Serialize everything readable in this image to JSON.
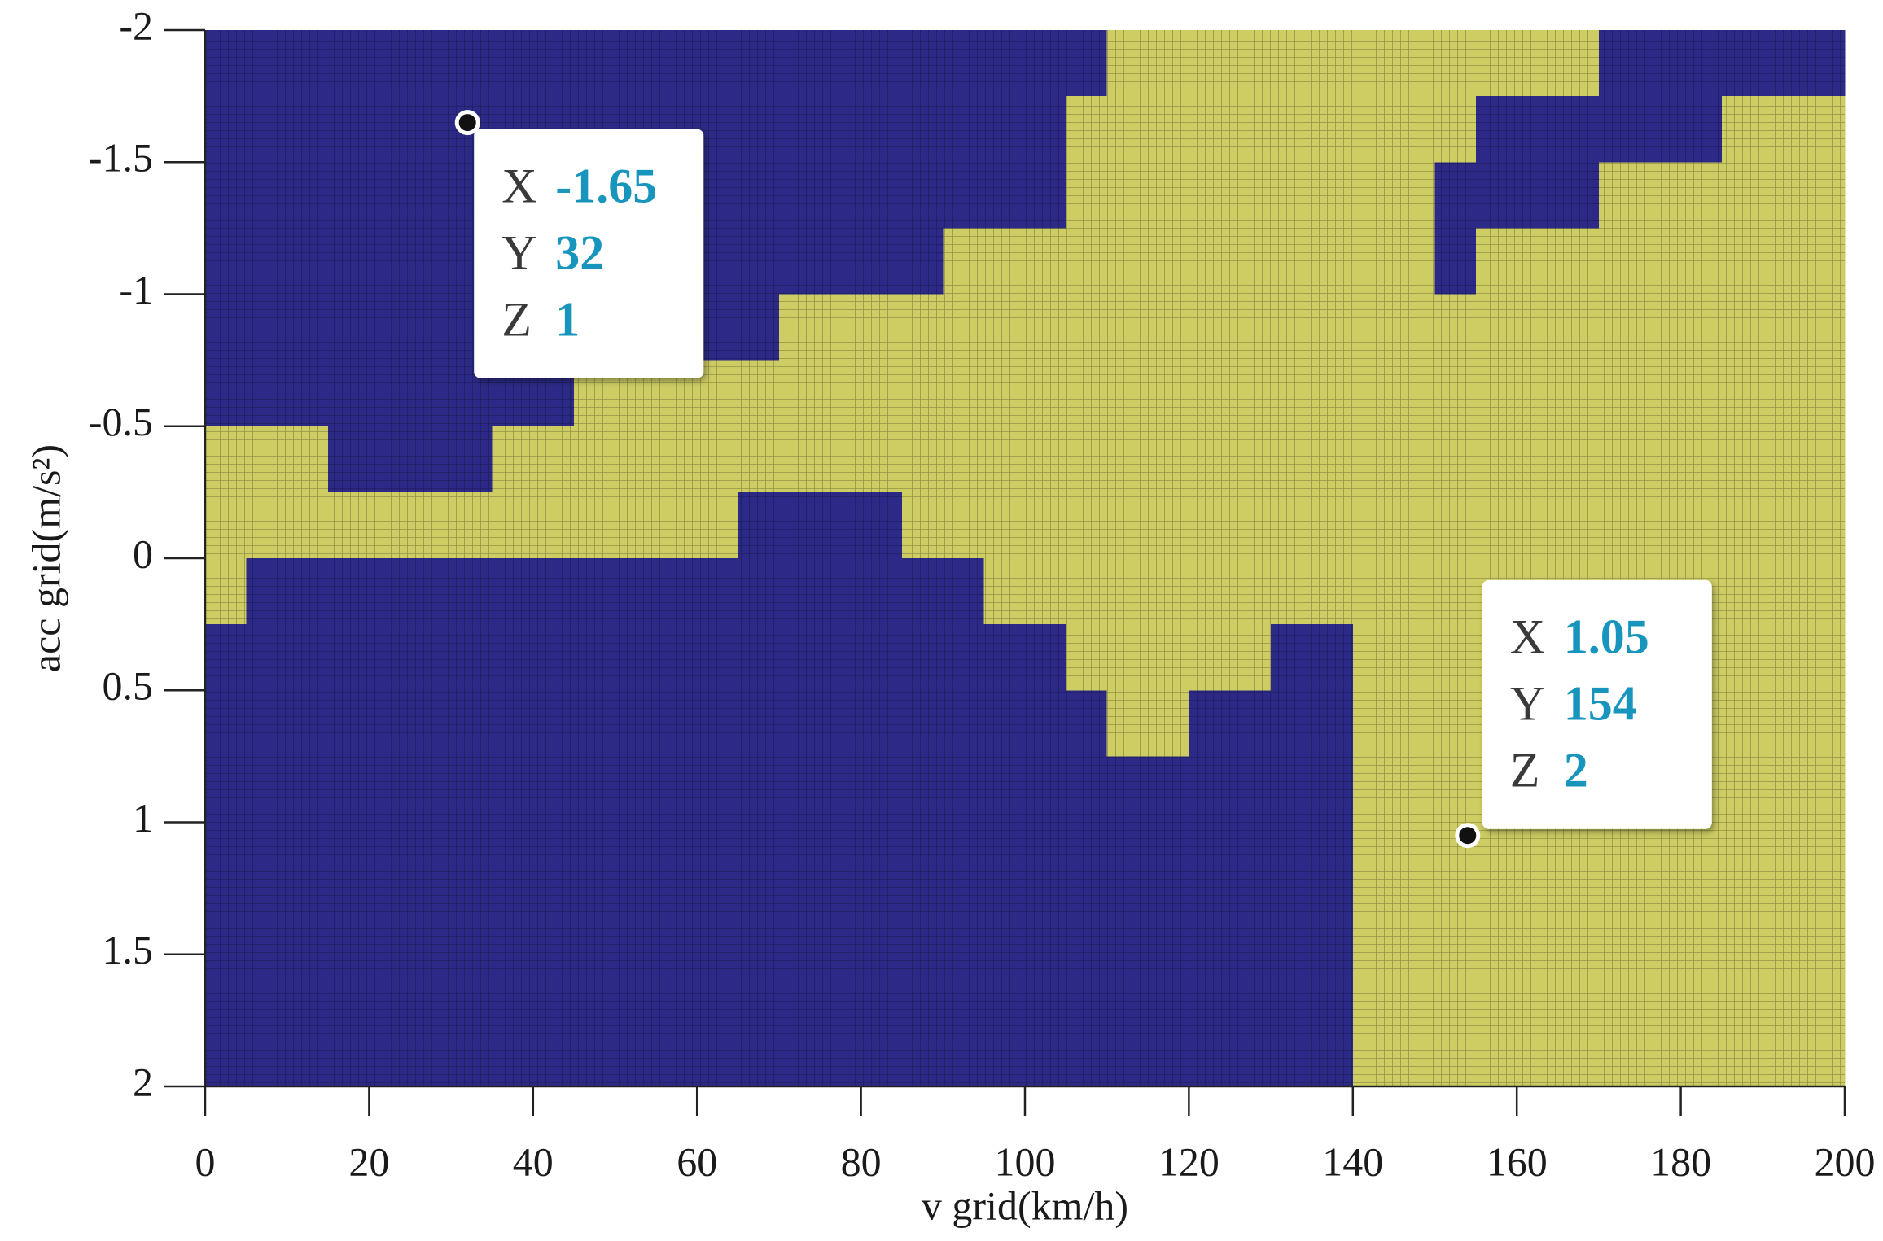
{
  "chart_data": {
    "type": "heatmap",
    "xlabel": "v grid(km/h)",
    "ylabel": "acc grid(m/s²)",
    "xlim": [
      0,
      200
    ],
    "xticks": [
      0,
      20,
      40,
      60,
      80,
      100,
      120,
      140,
      160,
      180,
      200
    ],
    "ylim": [
      -2,
      2
    ],
    "yticks": [
      -2,
      -1.5,
      -1,
      -0.5,
      0,
      0.5,
      1,
      1.5,
      2
    ],
    "y_reversed": true,
    "colors": {
      "1": "#2c2a86",
      "2": "#cdcd63"
    },
    "x": [
      2.5,
      7.5,
      12.5,
      17.5,
      22.5,
      27.5,
      32.5,
      37.5,
      42.5,
      47.5,
      52.5,
      57.5,
      62.5,
      67.5,
      72.5,
      77.5,
      82.5,
      87.5,
      92.5,
      97.5,
      102.5,
      107.5,
      112.5,
      117.5,
      122.5,
      127.5,
      132.5,
      137.5,
      142.5,
      147.5,
      152.5,
      157.5,
      162.5,
      167.5,
      172.5,
      177.5,
      182.5,
      187.5,
      192.5,
      197.5
    ],
    "y": [
      -1.875,
      -1.625,
      -1.375,
      -1.125,
      -0.875,
      -0.625,
      -0.375,
      -0.125,
      0.125,
      0.375,
      0.625,
      0.875,
      1.125,
      1.375,
      1.625,
      1.875
    ],
    "z": [
      [
        1,
        1,
        1,
        1,
        1,
        1,
        1,
        1,
        1,
        1,
        1,
        1,
        1,
        1,
        1,
        1,
        1,
        1,
        1,
        1,
        1,
        1,
        2,
        2,
        2,
        2,
        2,
        2,
        2,
        2,
        2,
        2,
        2,
        2,
        1,
        1,
        1,
        1,
        1,
        1
      ],
      [
        1,
        1,
        1,
        1,
        1,
        1,
        1,
        1,
        1,
        1,
        1,
        1,
        1,
        1,
        1,
        1,
        1,
        1,
        1,
        1,
        1,
        2,
        2,
        2,
        2,
        2,
        2,
        2,
        2,
        2,
        2,
        1,
        1,
        1,
        1,
        1,
        1,
        2,
        2,
        2
      ],
      [
        1,
        1,
        1,
        1,
        1,
        1,
        1,
        1,
        1,
        1,
        1,
        1,
        1,
        1,
        1,
        1,
        1,
        1,
        1,
        1,
        1,
        2,
        2,
        2,
        2,
        2,
        2,
        2,
        2,
        2,
        1,
        1,
        1,
        1,
        2,
        2,
        2,
        2,
        2,
        2
      ],
      [
        1,
        1,
        1,
        1,
        1,
        1,
        1,
        1,
        1,
        1,
        1,
        1,
        1,
        1,
        1,
        1,
        1,
        1,
        2,
        2,
        2,
        2,
        2,
        2,
        2,
        2,
        2,
        2,
        2,
        2,
        1,
        2,
        2,
        2,
        2,
        2,
        2,
        2,
        2,
        2
      ],
      [
        1,
        1,
        1,
        1,
        1,
        1,
        1,
        1,
        1,
        1,
        1,
        1,
        1,
        1,
        2,
        2,
        2,
        2,
        2,
        2,
        2,
        2,
        2,
        2,
        2,
        2,
        2,
        2,
        2,
        2,
        2,
        2,
        2,
        2,
        2,
        2,
        2,
        2,
        2,
        2
      ],
      [
        1,
        1,
        1,
        1,
        1,
        1,
        1,
        1,
        1,
        2,
        2,
        2,
        2,
        2,
        2,
        2,
        2,
        2,
        2,
        2,
        2,
        2,
        2,
        2,
        2,
        2,
        2,
        2,
        2,
        2,
        2,
        2,
        2,
        2,
        2,
        2,
        2,
        2,
        2,
        2
      ],
      [
        2,
        2,
        2,
        1,
        1,
        1,
        1,
        2,
        2,
        2,
        2,
        2,
        2,
        2,
        2,
        2,
        2,
        2,
        2,
        2,
        2,
        2,
        2,
        2,
        2,
        2,
        2,
        2,
        2,
        2,
        2,
        2,
        2,
        2,
        2,
        2,
        2,
        2,
        2,
        2
      ],
      [
        2,
        2,
        2,
        2,
        2,
        2,
        2,
        2,
        2,
        2,
        2,
        2,
        2,
        1,
        1,
        1,
        1,
        2,
        2,
        2,
        2,
        2,
        2,
        2,
        2,
        2,
        2,
        2,
        2,
        2,
        2,
        2,
        2,
        2,
        2,
        2,
        2,
        2,
        2,
        2
      ],
      [
        2,
        1,
        1,
        1,
        1,
        1,
        1,
        1,
        1,
        1,
        1,
        1,
        1,
        1,
        1,
        1,
        1,
        1,
        1,
        2,
        2,
        2,
        2,
        2,
        2,
        2,
        2,
        2,
        2,
        2,
        2,
        2,
        2,
        2,
        2,
        2,
        2,
        2,
        2,
        2
      ],
      [
        1,
        1,
        1,
        1,
        1,
        1,
        1,
        1,
        1,
        1,
        1,
        1,
        1,
        1,
        1,
        1,
        1,
        1,
        1,
        1,
        1,
        2,
        2,
        2,
        2,
        2,
        1,
        1,
        2,
        2,
        2,
        2,
        2,
        2,
        2,
        2,
        2,
        2,
        2,
        2
      ],
      [
        1,
        1,
        1,
        1,
        1,
        1,
        1,
        1,
        1,
        1,
        1,
        1,
        1,
        1,
        1,
        1,
        1,
        1,
        1,
        1,
        1,
        1,
        2,
        2,
        1,
        1,
        1,
        1,
        2,
        2,
        2,
        2,
        2,
        2,
        2,
        2,
        2,
        2,
        2,
        2
      ],
      [
        1,
        1,
        1,
        1,
        1,
        1,
        1,
        1,
        1,
        1,
        1,
        1,
        1,
        1,
        1,
        1,
        1,
        1,
        1,
        1,
        1,
        1,
        1,
        1,
        1,
        1,
        1,
        1,
        2,
        2,
        2,
        2,
        2,
        2,
        2,
        2,
        2,
        2,
        2,
        2
      ],
      [
        1,
        1,
        1,
        1,
        1,
        1,
        1,
        1,
        1,
        1,
        1,
        1,
        1,
        1,
        1,
        1,
        1,
        1,
        1,
        1,
        1,
        1,
        1,
        1,
        1,
        1,
        1,
        1,
        2,
        2,
        2,
        2,
        2,
        2,
        2,
        2,
        2,
        2,
        2,
        2
      ],
      [
        1,
        1,
        1,
        1,
        1,
        1,
        1,
        1,
        1,
        1,
        1,
        1,
        1,
        1,
        1,
        1,
        1,
        1,
        1,
        1,
        1,
        1,
        1,
        1,
        1,
        1,
        1,
        1,
        2,
        2,
        2,
        2,
        2,
        2,
        2,
        2,
        2,
        2,
        2,
        2
      ],
      [
        1,
        1,
        1,
        1,
        1,
        1,
        1,
        1,
        1,
        1,
        1,
        1,
        1,
        1,
        1,
        1,
        1,
        1,
        1,
        1,
        1,
        1,
        1,
        1,
        1,
        1,
        1,
        1,
        2,
        2,
        2,
        2,
        2,
        2,
        2,
        2,
        2,
        2,
        2,
        2
      ],
      [
        1,
        1,
        1,
        1,
        1,
        1,
        1,
        1,
        1,
        1,
        1,
        1,
        1,
        1,
        1,
        1,
        1,
        1,
        1,
        1,
        1,
        1,
        1,
        1,
        1,
        1,
        1,
        1,
        2,
        2,
        2,
        2,
        2,
        2,
        2,
        2,
        2,
        2,
        2,
        2
      ]
    ],
    "datatips": [
      {
        "labels": [
          "X",
          "Y",
          "Z"
        ],
        "values": [
          -1.65,
          32,
          1
        ]
      },
      {
        "labels": [
          "X",
          "Y",
          "Z"
        ],
        "values": [
          1.05,
          154,
          2
        ]
      }
    ]
  }
}
